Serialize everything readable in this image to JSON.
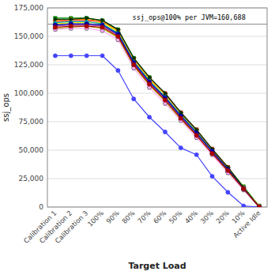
{
  "chart_data": {
    "type": "line",
    "xlabel": "Target Load",
    "ylabel": "ssj_ops",
    "annotation": "  ssj_ops@100% per JVM=160,688",
    "reference_line": 160688,
    "categories": [
      "Calibration 1",
      "Calibration 2",
      "Calibration 3",
      "100%",
      "90%",
      "80%",
      "70%",
      "60%",
      "50%",
      "40%",
      "30%",
      "20%",
      "10%",
      "Active Idle"
    ],
    "ylim": [
      0,
      175000
    ],
    "yticks": [
      0,
      {
        "value": 25000,
        "label": "25,000"
      },
      {
        "value": 50000,
        "label": "50,000"
      },
      {
        "value": 75000,
        "label": "75,000"
      },
      {
        "value": 100000,
        "label": "100,000"
      },
      {
        "value": 125000,
        "label": "125,000"
      },
      {
        "value": 150000,
        "label": "150,000"
      },
      {
        "value": 175000,
        "label": "175,000"
      }
    ],
    "grid": true,
    "series": [
      {
        "color": "#4444ff",
        "marker": "circle",
        "values": [
          133000,
          133000,
          133000,
          133000,
          120000,
          95000,
          79000,
          66000,
          52000,
          46000,
          27000,
          13000,
          1000,
          0
        ]
      },
      {
        "color": "#008800",
        "marker": "square",
        "values": [
          166000,
          166000,
          166000,
          164000,
          156000,
          131000,
          114000,
          99000,
          83000,
          68000,
          51000,
          35000,
          18000,
          1000
        ]
      },
      {
        "color": "#ff2222",
        "marker": "square",
        "values": [
          163000,
          164000,
          164000,
          163000,
          155000,
          130000,
          113000,
          100000,
          83000,
          68000,
          51000,
          35000,
          17000,
          0
        ]
      },
      {
        "color": "#ffff00",
        "marker": "circle",
        "values": [
          161000,
          162000,
          162000,
          162000,
          154000,
          128000,
          112000,
          97000,
          81000,
          66000,
          49000,
          34000,
          17000,
          1000
        ]
      },
      {
        "color": "#ff8800",
        "marker": "triangle-up",
        "values": [
          164000,
          165000,
          165000,
          163000,
          155000,
          130000,
          113000,
          99000,
          82000,
          67000,
          50000,
          34000,
          17000,
          0
        ]
      },
      {
        "color": "#aa44aa",
        "marker": "triangle-down",
        "values": [
          159000,
          160000,
          160000,
          159000,
          151000,
          126000,
          109000,
          95000,
          79000,
          64000,
          48000,
          32000,
          16000,
          0
        ]
      },
      {
        "color": "#00aaaa",
        "marker": "diamond",
        "values": [
          162000,
          163000,
          163000,
          161000,
          153000,
          128000,
          111000,
          97000,
          81000,
          66000,
          49000,
          33000,
          17000,
          0
        ]
      },
      {
        "color": "#aaaa00",
        "marker": "triangle-left",
        "values": [
          157000,
          158000,
          159000,
          157000,
          149000,
          124000,
          107000,
          93000,
          77000,
          63000,
          47000,
          31000,
          15000,
          0
        ]
      },
      {
        "color": "#003300",
        "marker": "triangle-right",
        "values": [
          165000,
          165000,
          166000,
          164000,
          156000,
          131000,
          114000,
          100000,
          83000,
          68000,
          51000,
          35000,
          17000,
          0
        ]
      },
      {
        "color": "#ffaaff",
        "marker": "pentagon",
        "values": [
          156000,
          157000,
          157000,
          155000,
          147000,
          122000,
          105000,
          91000,
          76000,
          61000,
          46000,
          30000,
          15000,
          0
        ]
      },
      {
        "color": "#0000aa",
        "marker": "hexagon",
        "values": [
          160000,
          161000,
          161000,
          160000,
          152000,
          127000,
          110000,
          96000,
          80000,
          65000,
          49000,
          33000,
          16000,
          0
        ]
      },
      {
        "color": "#aa0000",
        "marker": "hexagon",
        "values": [
          158000,
          159000,
          159000,
          158000,
          150000,
          125000,
          108000,
          94000,
          78000,
          63000,
          47000,
          32000,
          16000,
          0
        ]
      }
    ]
  }
}
